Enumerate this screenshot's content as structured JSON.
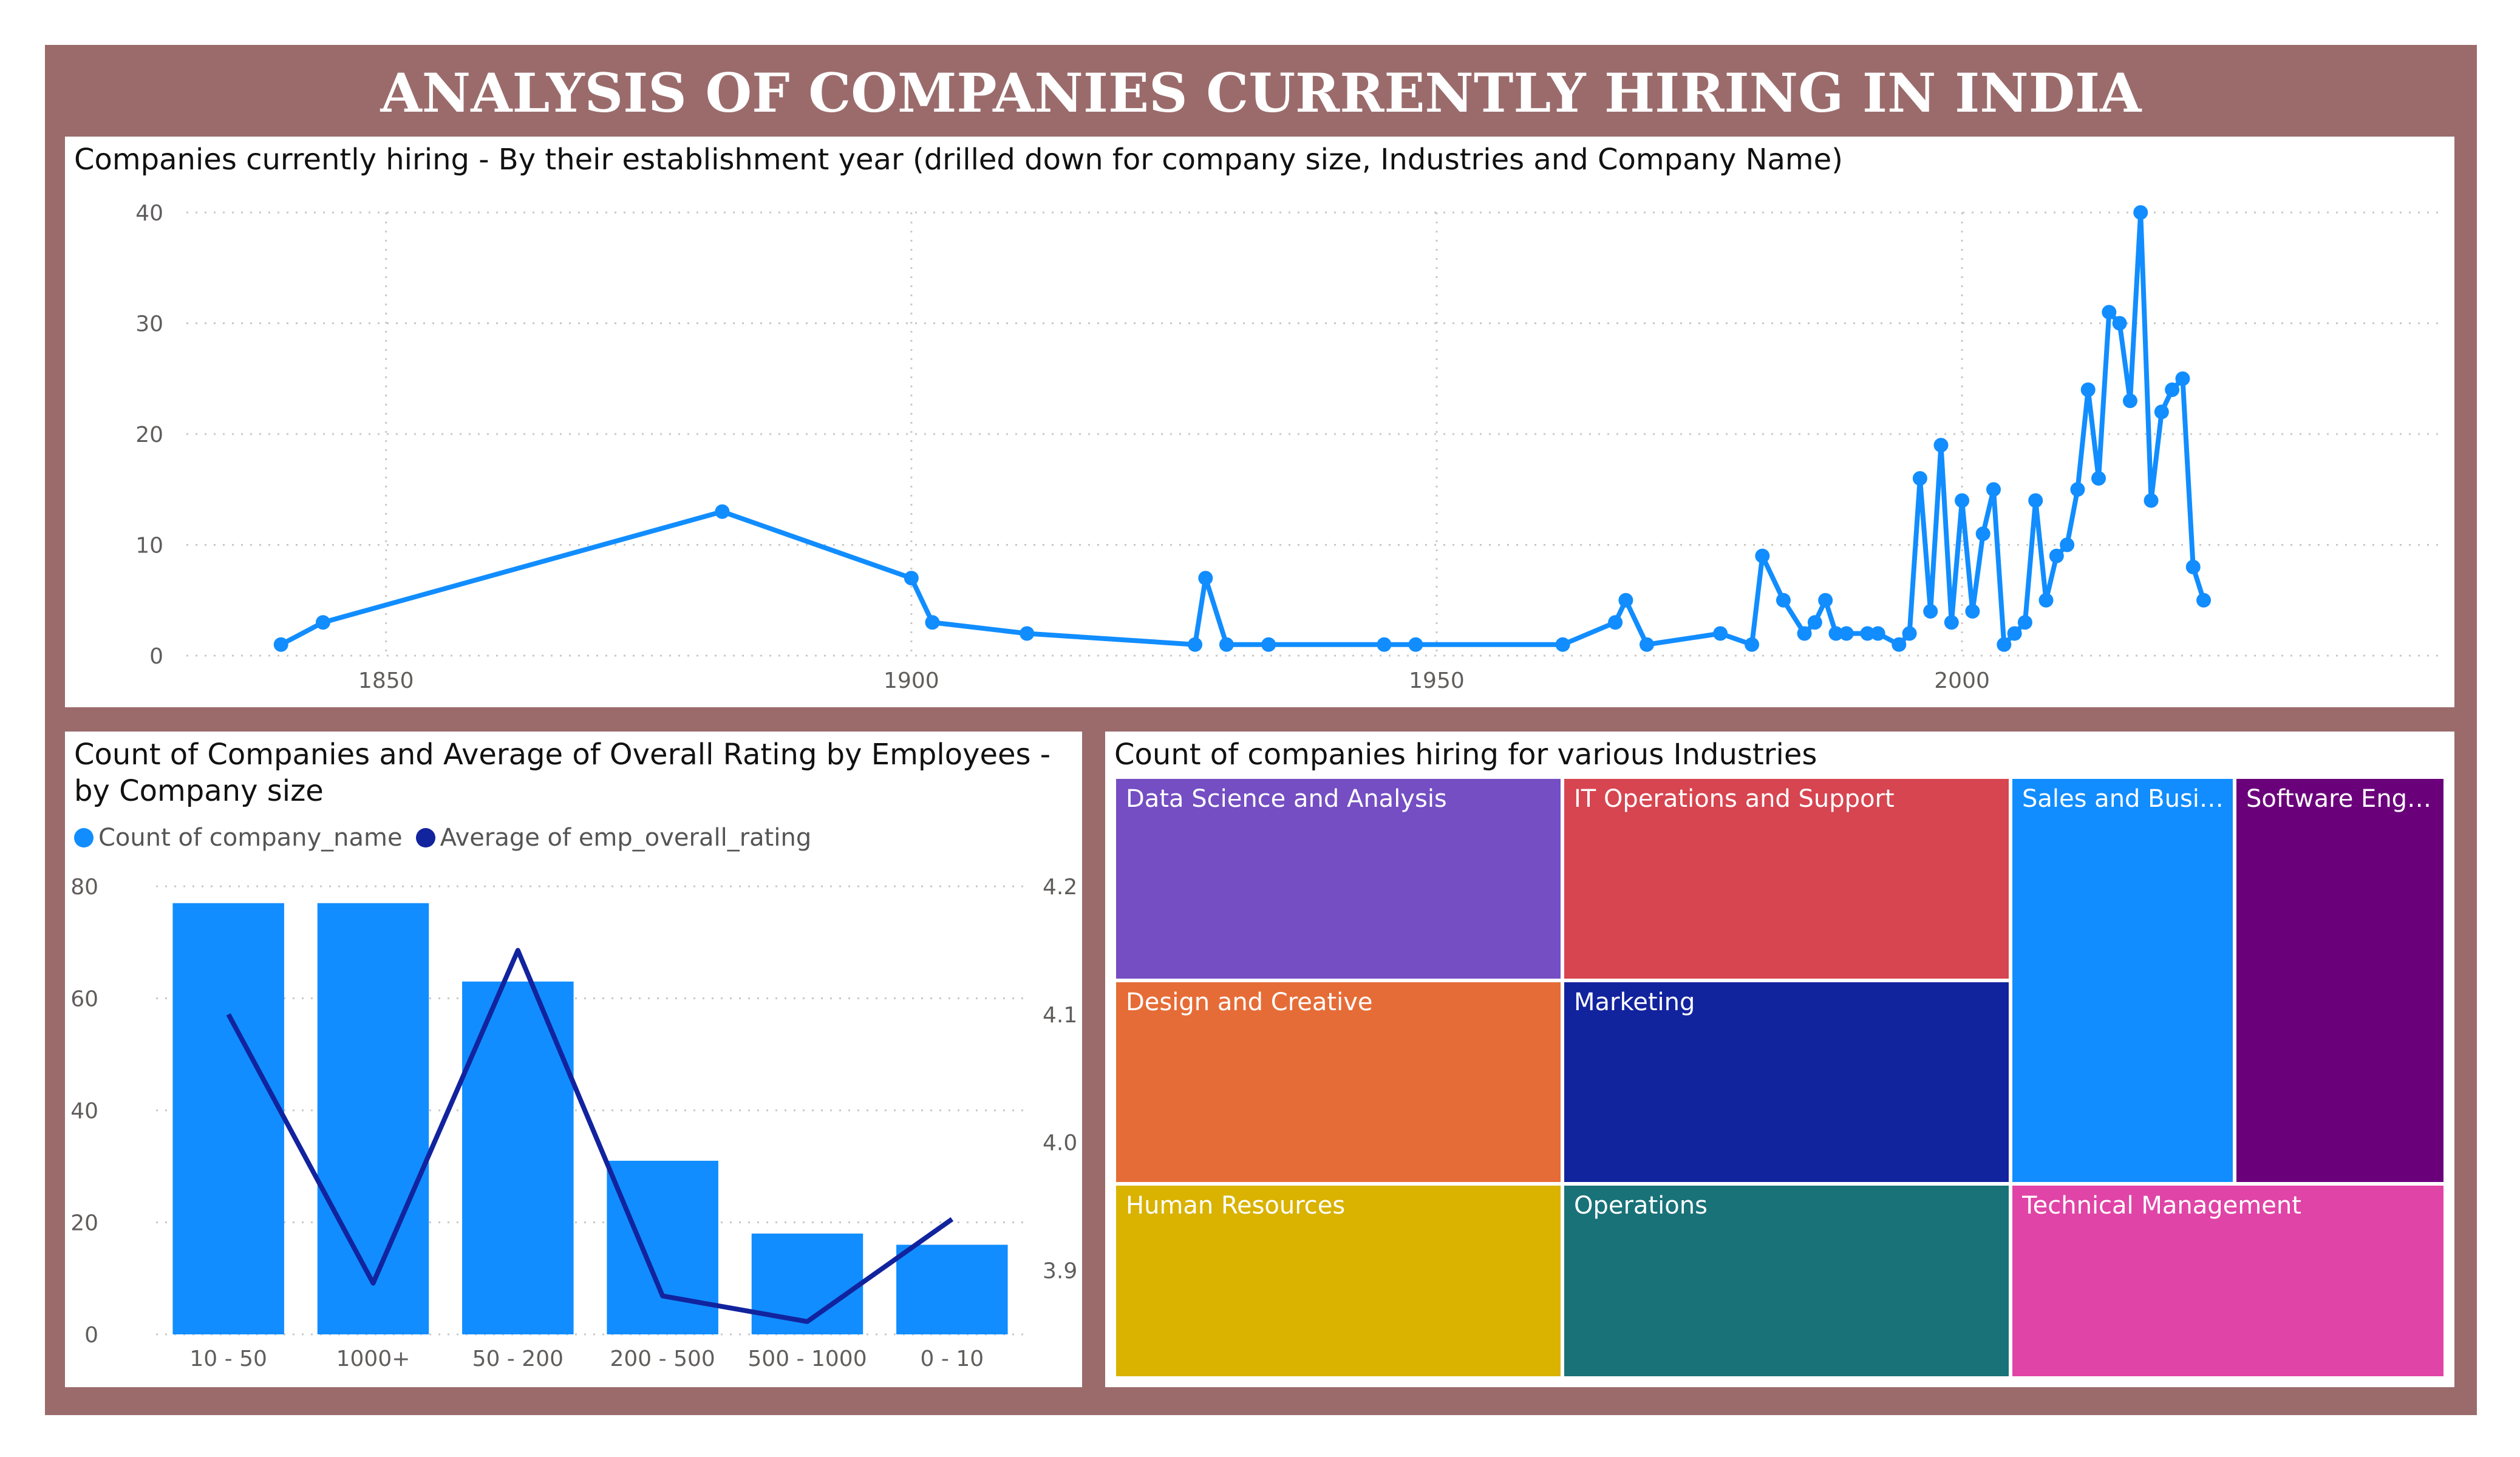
{
  "dashboard": {
    "title": "ANALYSIS OF COMPANIES CURRENTLY HIRING IN INDIA"
  },
  "colors": {
    "frame": "#9b6b6b",
    "series_primary": "#118dff",
    "series_secondary": "#12239e",
    "gridline": "#c8c8c8",
    "axis_text": "#605e5c"
  },
  "chart_data": [
    {
      "type": "line",
      "title": "Companies currently hiring - By their establishment year (drilled down for company size, Industries and Company Name)",
      "xlabel": "",
      "ylabel": "",
      "xlim": [
        1831,
        2046
      ],
      "ylim": [
        0,
        40
      ],
      "xticks": [
        1850,
        1900,
        1950,
        2000
      ],
      "yticks": [
        0,
        10,
        20,
        30,
        40
      ],
      "grid": true,
      "markers": true,
      "x": [
        1840,
        1844,
        1882,
        1900,
        1902,
        1911,
        1927,
        1928,
        1930,
        1934,
        1945,
        1948,
        1962,
        1967,
        1968,
        1970,
        1977,
        1980,
        1981,
        1983,
        1985,
        1986,
        1987,
        1988,
        1989,
        1991,
        1992,
        1994,
        1995,
        1996,
        1997,
        1998,
        1999,
        2000,
        2001,
        2002,
        2003,
        2004,
        2005,
        2006,
        2007,
        2008,
        2009,
        2010,
        2011,
        2012,
        2013,
        2014,
        2015,
        2016,
        2017,
        2018,
        2019,
        2020,
        2021,
        2022,
        2023
      ],
      "y": [
        1,
        3,
        13,
        7,
        3,
        2,
        1,
        7,
        1,
        1,
        1,
        1,
        1,
        3,
        5,
        1,
        2,
        1,
        9,
        5,
        2,
        3,
        5,
        2,
        2,
        2,
        2,
        1,
        2,
        16,
        4,
        19,
        3,
        14,
        4,
        11,
        15,
        1,
        2,
        3,
        14,
        5,
        9,
        10,
        15,
        24,
        16,
        31,
        30,
        23,
        40,
        14,
        22,
        24,
        25,
        8,
        5
      ]
    },
    {
      "type": "bar",
      "title": "Count of Companies and Average of Overall Rating by Employees - by Company size",
      "categories": [
        "10 - 50",
        "1000+",
        "50 - 200",
        "200 - 500",
        "500 - 1000",
        "0 - 10"
      ],
      "series": [
        {
          "name": "Count of company_name",
          "type": "bar",
          "axis": "left",
          "values": [
            77,
            77,
            63,
            31,
            18,
            16
          ]
        },
        {
          "name": "Average of emp_overall_rating",
          "type": "line",
          "axis": "right",
          "values": [
            4.1,
            3.89,
            4.15,
            3.88,
            3.86,
            3.94
          ]
        }
      ],
      "ylim": [
        0,
        80
      ],
      "yticks": [
        0,
        20,
        40,
        60,
        80
      ],
      "y2lim": [
        3.85,
        4.2
      ],
      "y2ticks": [
        3.9,
        4.0,
        4.1,
        4.2
      ],
      "legend_position": "top-left",
      "grid": true
    },
    {
      "type": "treemap",
      "title": "Count of companies hiring for various Industries",
      "items": [
        {
          "label": "Data Science and Analysis",
          "color": "#744ec2"
        },
        {
          "label": "IT Operations and Support",
          "color": "#d64550"
        },
        {
          "label": "Sales and Busin...",
          "color": "#118dff"
        },
        {
          "label": "Software Engine...",
          "color": "#6b007b"
        },
        {
          "label": "Design and Creative",
          "color": "#e66c37"
        },
        {
          "label": "Marketing",
          "color": "#12239e"
        },
        {
          "label": "Human Resources",
          "color": "#d9b300"
        },
        {
          "label": "Operations",
          "color": "#197278"
        },
        {
          "label": "Technical Management",
          "color": "#e044a7"
        }
      ]
    }
  ]
}
